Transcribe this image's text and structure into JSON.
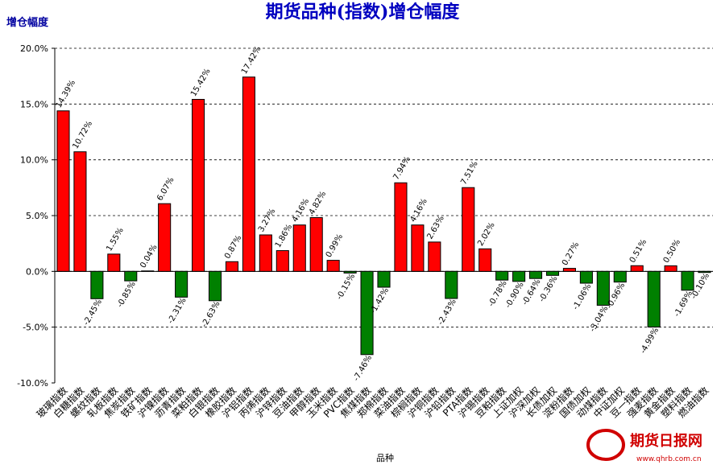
{
  "chart_data": {
    "type": "bar",
    "title": "期货品种(指数)增仓幅度",
    "y_axis_title": "增仓幅度",
    "x_axis_label": "品种",
    "watermark": "期货日报网",
    "watermark_url": "www.qhrb.com.cn",
    "categories": [
      "玻璃指数",
      "白糖指数",
      "螺纹指数",
      "轧板指数",
      "焦炭指数",
      "铁矿指数",
      "沪镍指数",
      "沥青指数",
      "菜粕指数",
      "白银指数",
      "橡胶指数",
      "沪铝指数",
      "丙烯指数",
      "沪锌指数",
      "豆油指数",
      "甲醇指数",
      "玉米指数",
      "PVC指数",
      "焦煤指数",
      "郑棉指数",
      "菜油指数",
      "棕榈指数",
      "沪铜指数",
      "沪铅指数",
      "PTA指数",
      "沪锡指数",
      "豆粕指数",
      "上证加权",
      "沪深加权",
      "长债加权",
      "淀粉指数",
      "国债加权",
      "动煤指数",
      "中证加权",
      "豆一指数",
      "强麦指数",
      "黄金指数",
      "塑料指数",
      "燃油指数"
    ],
    "values": [
      14.39,
      10.72,
      -2.45,
      1.55,
      -0.85,
      0.04,
      6.07,
      -2.31,
      15.42,
      -2.63,
      0.87,
      17.42,
      3.27,
      1.86,
      4.16,
      4.82,
      0.99,
      -0.15,
      -7.46,
      -1.42,
      7.94,
      4.16,
      2.63,
      -2.43,
      7.51,
      2.02,
      -0.78,
      -0.9,
      -0.64,
      -0.36,
      0.27,
      -1.06,
      -3.04,
      -0.96,
      0.51,
      -4.99,
      0.5,
      -1.69,
      -0.1
    ],
    "value_labels": [
      "14.39%",
      "10.72%",
      "-2.45%",
      "1.55%",
      "-0.85%",
      "0.04%",
      "6.07%",
      "-2.31%",
      "15.42%",
      "-2.63%",
      "0.87%",
      "17.42%",
      "3.27%",
      "1.86%",
      "4.16%",
      "4.82%",
      "0.99%",
      "-0.15%",
      "-7.46%",
      "-1.42%",
      "7.94%",
      "4.16%",
      "2.63%",
      "-2.43%",
      "7.51%",
      "2.02%",
      "-0.78%",
      "-0.90%",
      "-0.64%",
      "-0.36%",
      "0.27%",
      "-1.06%",
      "-3.04%",
      "-0.96%",
      "0.51%",
      "-4.99%",
      "0.50%",
      "-1.69%",
      "-0.10%"
    ],
    "positive_color": "#ff0000",
    "negative_color": "#008000",
    "ylim": [
      -10,
      20
    ],
    "yticks": [
      {
        "value": -10,
        "label": "-10.0%"
      },
      {
        "value": -5,
        "label": "-5.0%"
      },
      {
        "value": 0,
        "label": "0.0%"
      },
      {
        "value": 5,
        "label": "5.0%"
      },
      {
        "value": 10,
        "label": "10.0%"
      },
      {
        "value": 15,
        "label": "15.0%"
      },
      {
        "value": 20,
        "label": "20.0%"
      }
    ],
    "grid": true
  }
}
